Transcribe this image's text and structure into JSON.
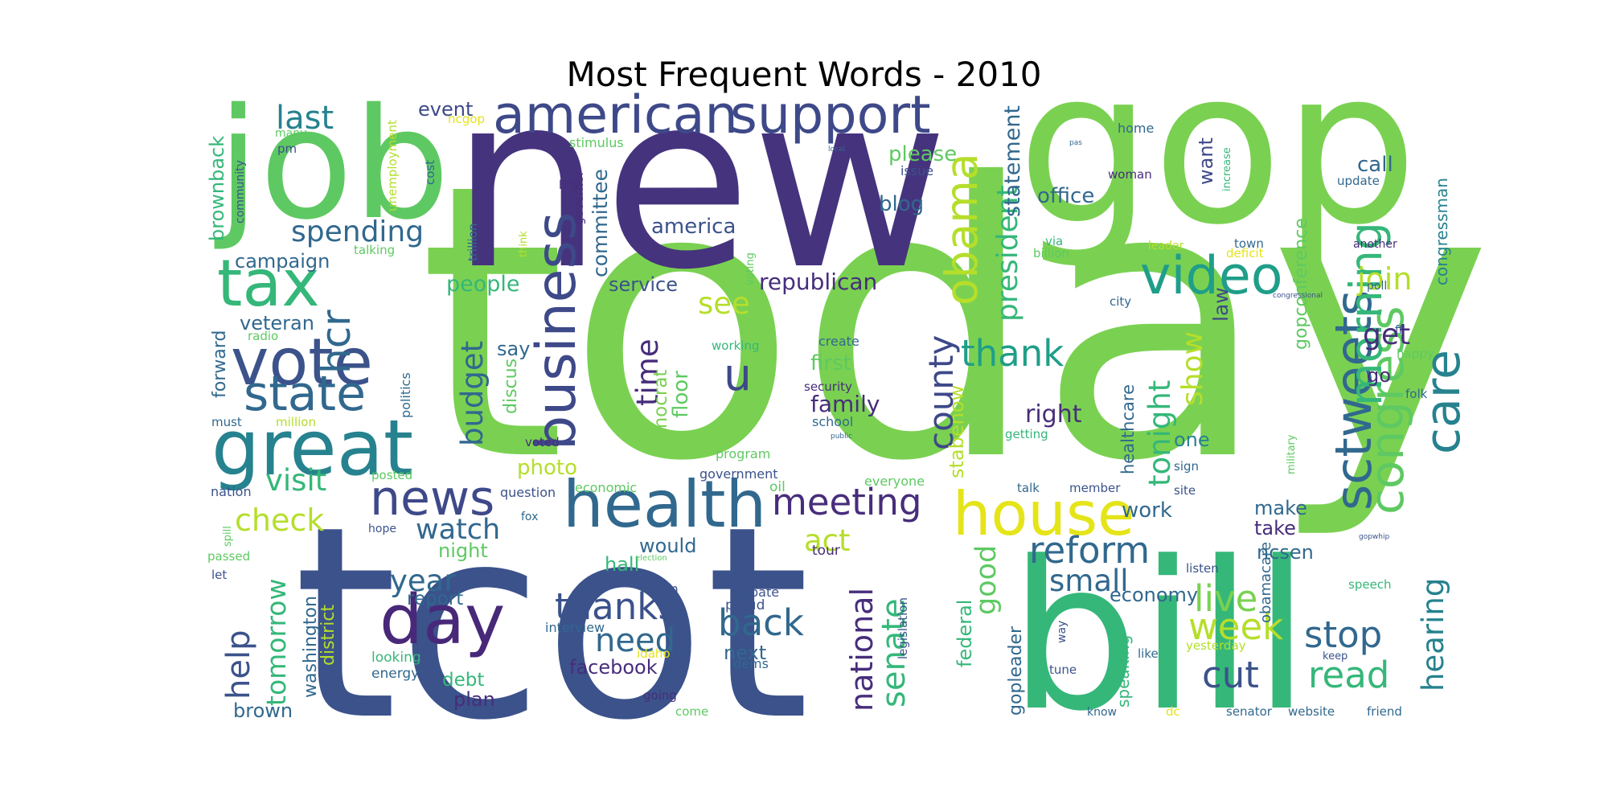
{
  "title": "Most Frequent Words - 2010",
  "palette": "viridis",
  "words": [
    {
      "text": "today",
      "color": "#7ad151"
    },
    {
      "text": "tcot",
      "color": "#3b528b"
    },
    {
      "text": "new",
      "color": "#46337e"
    },
    {
      "text": "gop",
      "color": "#7ad151"
    },
    {
      "text": "bill",
      "color": "#35b779"
    },
    {
      "text": "job",
      "color": "#5ec962"
    },
    {
      "text": "house",
      "color": "#e5e419"
    },
    {
      "text": "health",
      "color": "#31688e"
    },
    {
      "text": "great",
      "color": "#26828e"
    },
    {
      "text": "day",
      "color": "#482878"
    },
    {
      "text": "american",
      "color": "#3e4989"
    },
    {
      "text": "support",
      "color": "#3e4989"
    },
    {
      "text": "business",
      "color": "#3e4989"
    },
    {
      "text": "vote",
      "color": "#3b528b"
    },
    {
      "text": "state",
      "color": "#31688e"
    },
    {
      "text": "tax",
      "color": "#35b779"
    },
    {
      "text": "video",
      "color": "#1f9e89"
    },
    {
      "text": "news",
      "color": "#3e4989"
    },
    {
      "text": "care",
      "color": "#26828e"
    },
    {
      "text": "congress",
      "color": "#5ec962"
    },
    {
      "text": "sctweets",
      "color": "#31688e"
    },
    {
      "text": "morning",
      "color": "#35b779"
    },
    {
      "text": "obama",
      "color": "#b5de2b"
    },
    {
      "text": "meeting",
      "color": "#472d7b"
    },
    {
      "text": "week",
      "color": "#b5de2b"
    },
    {
      "text": "back",
      "color": "#31688e"
    },
    {
      "text": "thanks",
      "color": "#3b528b"
    },
    {
      "text": "reform",
      "color": "#31688e"
    },
    {
      "text": "live",
      "color": "#7ad151"
    },
    {
      "text": "cut",
      "color": "#3b528b"
    },
    {
      "text": "read",
      "color": "#35b779"
    },
    {
      "text": "stop",
      "color": "#31688e"
    },
    {
      "text": "help",
      "color": "#3b528b"
    },
    {
      "text": "hcr",
      "color": "#31688e"
    },
    {
      "text": "spending",
      "color": "#31688e"
    },
    {
      "text": "last",
      "color": "#26828e"
    },
    {
      "text": "president",
      "color": "#35b779"
    },
    {
      "text": "county",
      "color": "#3e4989"
    },
    {
      "text": "thank",
      "color": "#1f9e89"
    },
    {
      "text": "tonight",
      "color": "#35b779"
    },
    {
      "text": "join",
      "color": "#b5de2b"
    },
    {
      "text": "get",
      "color": "#472d7b"
    },
    {
      "text": "show",
      "color": "#b5de2b"
    },
    {
      "text": "watch",
      "color": "#31688e"
    },
    {
      "text": "check",
      "color": "#b5de2b"
    },
    {
      "text": "visit",
      "color": "#35b779"
    },
    {
      "text": "act",
      "color": "#b5de2b"
    },
    {
      "text": "need",
      "color": "#31688e"
    },
    {
      "text": "year",
      "color": "#31688e"
    },
    {
      "text": "small",
      "color": "#31688e"
    },
    {
      "text": "senate",
      "color": "#35b779"
    },
    {
      "text": "national",
      "color": "#472d7b"
    },
    {
      "text": "hearing",
      "color": "#26828e"
    },
    {
      "text": "time",
      "color": "#472d7b"
    },
    {
      "text": "budget",
      "color": "#31688e"
    },
    {
      "text": "tomorrow",
      "color": "#35b779"
    },
    {
      "text": "good",
      "color": "#5ec962"
    },
    {
      "text": "see",
      "color": "#b5de2b"
    },
    {
      "text": "u",
      "color": "#3e4989"
    },
    {
      "text": "right",
      "color": "#472d7b"
    },
    {
      "text": "first",
      "color": "#5ec962"
    },
    {
      "text": "family",
      "color": "#472d7b"
    },
    {
      "text": "republican",
      "color": "#472d7b"
    },
    {
      "text": "statement",
      "color": "#31688e"
    },
    {
      "text": "office",
      "color": "#31688e"
    },
    {
      "text": "blog",
      "color": "#31688e"
    },
    {
      "text": "please",
      "color": "#5ec962"
    },
    {
      "text": "committee",
      "color": "#31688e"
    },
    {
      "text": "america",
      "color": "#3b528b"
    },
    {
      "text": "service",
      "color": "#3b528b"
    },
    {
      "text": "campaign",
      "color": "#31688e"
    },
    {
      "text": "veteran",
      "color": "#31688e"
    },
    {
      "text": "people",
      "color": "#35b779"
    },
    {
      "text": "event",
      "color": "#3e4989"
    },
    {
      "text": "democrat",
      "color": "#7ad151"
    },
    {
      "text": "floor",
      "color": "#5ec962"
    },
    {
      "text": "photo",
      "color": "#b5de2b"
    },
    {
      "text": "discus",
      "color": "#5ec962"
    },
    {
      "text": "say",
      "color": "#31688e"
    },
    {
      "text": "ncsen",
      "color": "#31688e"
    },
    {
      "text": "take",
      "color": "#472d7b"
    },
    {
      "text": "make",
      "color": "#31688e"
    },
    {
      "text": "work",
      "color": "#31688e"
    },
    {
      "text": "economy",
      "color": "#31688e"
    },
    {
      "text": "gopleader",
      "color": "#31688e"
    },
    {
      "text": "federal",
      "color": "#35b779"
    },
    {
      "text": "stabenow",
      "color": "#b5de2b"
    },
    {
      "text": "healthcare",
      "color": "#31688e"
    },
    {
      "text": "law",
      "color": "#3e4989"
    },
    {
      "text": "one",
      "color": "#26828e"
    },
    {
      "text": "want",
      "color": "#3e4989"
    },
    {
      "text": "call",
      "color": "#31688e"
    },
    {
      "text": "gopconference",
      "color": "#5ec962"
    },
    {
      "text": "congressman",
      "color": "#26828e"
    },
    {
      "text": "go",
      "color": "#472d7b"
    },
    {
      "text": "washington",
      "color": "#31688e"
    },
    {
      "text": "district",
      "color": "#b5de2b"
    },
    {
      "text": "brown",
      "color": "#31688e"
    },
    {
      "text": "brownback",
      "color": "#35b779"
    },
    {
      "text": "forward",
      "color": "#31688e"
    },
    {
      "text": "report",
      "color": "#31688e"
    },
    {
      "text": "debt",
      "color": "#35b779"
    },
    {
      "text": "plan",
      "color": "#472d7b"
    },
    {
      "text": "facebook",
      "color": "#472d7b"
    },
    {
      "text": "next",
      "color": "#31688e"
    },
    {
      "text": "hall",
      "color": "#35b779"
    },
    {
      "text": "night",
      "color": "#5ec962"
    },
    {
      "text": "would",
      "color": "#31688e"
    },
    {
      "text": "speaking",
      "color": "#35b779"
    },
    {
      "text": "obamacare",
      "color": "#31688e"
    },
    {
      "text": "politics",
      "color": "#31688e"
    },
    {
      "text": "energy",
      "color": "#31688e"
    },
    {
      "text": "looking",
      "color": "#35b779"
    },
    {
      "text": "interview",
      "color": "#31688e"
    },
    {
      "text": "debate",
      "color": "#3b528b"
    },
    {
      "text": "proud",
      "color": "#3b528b"
    },
    {
      "text": "dems",
      "color": "#31688e"
    },
    {
      "text": "tour",
      "color": "#472d7b"
    },
    {
      "text": "forum",
      "color": "#3b528b"
    },
    {
      "text": "legislation",
      "color": "#3b528b"
    },
    {
      "text": "government",
      "color": "#3b528b"
    },
    {
      "text": "program",
      "color": "#5ec962"
    },
    {
      "text": "economic",
      "color": "#5ec962"
    },
    {
      "text": "oil",
      "color": "#5ec962"
    },
    {
      "text": "question",
      "color": "#3b528b"
    },
    {
      "text": "voted",
      "color": "#472d7b"
    },
    {
      "text": "posted",
      "color": "#5ec962"
    },
    {
      "text": "nation",
      "color": "#3b528b"
    },
    {
      "text": "must",
      "color": "#31688e"
    },
    {
      "text": "million",
      "color": "#b5de2b"
    },
    {
      "text": "radio",
      "color": "#5ec962"
    },
    {
      "text": "talking",
      "color": "#5ec962"
    },
    {
      "text": "stimulus",
      "color": "#5ec962"
    },
    {
      "text": "ncgop",
      "color": "#e5e419"
    },
    {
      "text": "unemployment",
      "color": "#b5de2b"
    },
    {
      "text": "cost",
      "color": "#31688e"
    },
    {
      "text": "community",
      "color": "#3b528b"
    },
    {
      "text": "pm",
      "color": "#3b528b"
    },
    {
      "text": "many",
      "color": "#5ec962"
    },
    {
      "text": "trillion",
      "color": "#31688e"
    },
    {
      "text": "think",
      "color": "#b5de2b"
    },
    {
      "text": "big",
      "color": "#472d7b"
    },
    {
      "text": "governor",
      "color": "#472d7b"
    },
    {
      "text": "voting",
      "color": "#5ec962"
    },
    {
      "text": "working",
      "color": "#35b779"
    },
    {
      "text": "create",
      "color": "#31688e"
    },
    {
      "text": "security",
      "color": "#472d7b"
    },
    {
      "text": "school",
      "color": "#31688e"
    },
    {
      "text": "public",
      "color": "#31688e"
    },
    {
      "text": "local",
      "color": "#31688e"
    },
    {
      "text": "pas",
      "color": "#31688e"
    },
    {
      "text": "issue",
      "color": "#3b528b"
    },
    {
      "text": "woman",
      "color": "#472d7b"
    },
    {
      "text": "home",
      "color": "#31688e"
    },
    {
      "text": "increase",
      "color": "#35b779"
    },
    {
      "text": "update",
      "color": "#31688e"
    },
    {
      "text": "via",
      "color": "#35b779"
    },
    {
      "text": "billion",
      "color": "#5ec962"
    },
    {
      "text": "leader",
      "color": "#b5de2b"
    },
    {
      "text": "town",
      "color": "#31688e"
    },
    {
      "text": "deficit",
      "color": "#e5e419"
    },
    {
      "text": "another",
      "color": "#472d7b"
    },
    {
      "text": "poll",
      "color": "#31688e"
    },
    {
      "text": "congressional",
      "color": "#3b528b"
    },
    {
      "text": "city",
      "color": "#31688e"
    },
    {
      "text": "ff",
      "color": "#3b528b"
    },
    {
      "text": "happy",
      "color": "#5ec962"
    },
    {
      "text": "folk",
      "color": "#31688e"
    },
    {
      "text": "military",
      "color": "#5ec962"
    },
    {
      "text": "getting",
      "color": "#35b779"
    },
    {
      "text": "everyone",
      "color": "#5ec962"
    },
    {
      "text": "talk",
      "color": "#31688e"
    },
    {
      "text": "member",
      "color": "#3b528b"
    },
    {
      "text": "site",
      "color": "#3b528b"
    },
    {
      "text": "sign",
      "color": "#31688e"
    },
    {
      "text": "speech",
      "color": "#35b779"
    },
    {
      "text": "gopwhip",
      "color": "#3b528b"
    },
    {
      "text": "listen",
      "color": "#3b528b"
    },
    {
      "text": "way",
      "color": "#3b528b"
    },
    {
      "text": "tune",
      "color": "#3b528b"
    },
    {
      "text": "like",
      "color": "#31688e"
    },
    {
      "text": "yesterday",
      "color": "#b5de2b"
    },
    {
      "text": "keep",
      "color": "#3b528b"
    },
    {
      "text": "know",
      "color": "#31688e"
    },
    {
      "text": "dc",
      "color": "#e5e419"
    },
    {
      "text": "senator",
      "color": "#31688e"
    },
    {
      "text": "website",
      "color": "#31688e"
    },
    {
      "text": "friend",
      "color": "#31688e"
    },
    {
      "text": "idaho",
      "color": "#e5e419"
    },
    {
      "text": "going",
      "color": "#472d7b"
    },
    {
      "text": "come",
      "color": "#5ec962"
    },
    {
      "text": "sen",
      "color": "#3b528b"
    },
    {
      "text": "spill",
      "color": "#5ec962"
    },
    {
      "text": "passed",
      "color": "#5ec962"
    },
    {
      "text": "let",
      "color": "#3b528b"
    },
    {
      "text": "hope",
      "color": "#3b528b"
    },
    {
      "text": "fox",
      "color": "#31688e"
    },
    {
      "text": "election",
      "color": "#5ec962"
    }
  ]
}
